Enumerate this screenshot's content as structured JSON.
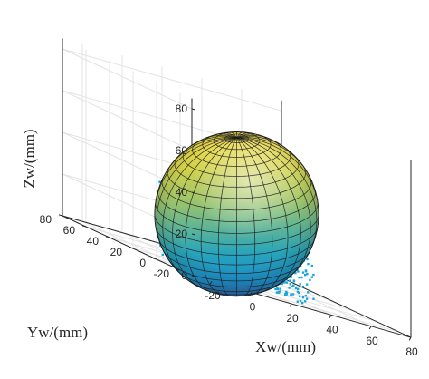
{
  "chart_data": {
    "type": "scatter",
    "title": "",
    "xlabel": "Xw/(mm)",
    "ylabel": "Yw/(mm)",
    "zlabel": "Zw/(mm)",
    "xticks": [
      "-20",
      "0",
      "20",
      "40",
      "60",
      "80"
    ],
    "yticks": [
      "-20",
      "0",
      "20",
      "40",
      "60",
      "80"
    ],
    "zticks": [
      "0",
      "20",
      "40",
      "60",
      "80"
    ],
    "xlim": [
      -30,
      80
    ],
    "ylim": [
      -30,
      80
    ],
    "zlim": [
      0,
      85
    ],
    "grid": true,
    "view": "3d",
    "series": [
      {
        "kind": "sphere-surface",
        "center": [
          25,
          25,
          30
        ],
        "radius": 37,
        "colormap": "parula",
        "meridians": 28,
        "parallels": 22
      },
      {
        "kind": "point-cloud",
        "color": "#1aa7d8",
        "center": [
          25,
          25,
          12
        ],
        "radius": 34,
        "z_range": [
          -2,
          35
        ]
      }
    ]
  }
}
